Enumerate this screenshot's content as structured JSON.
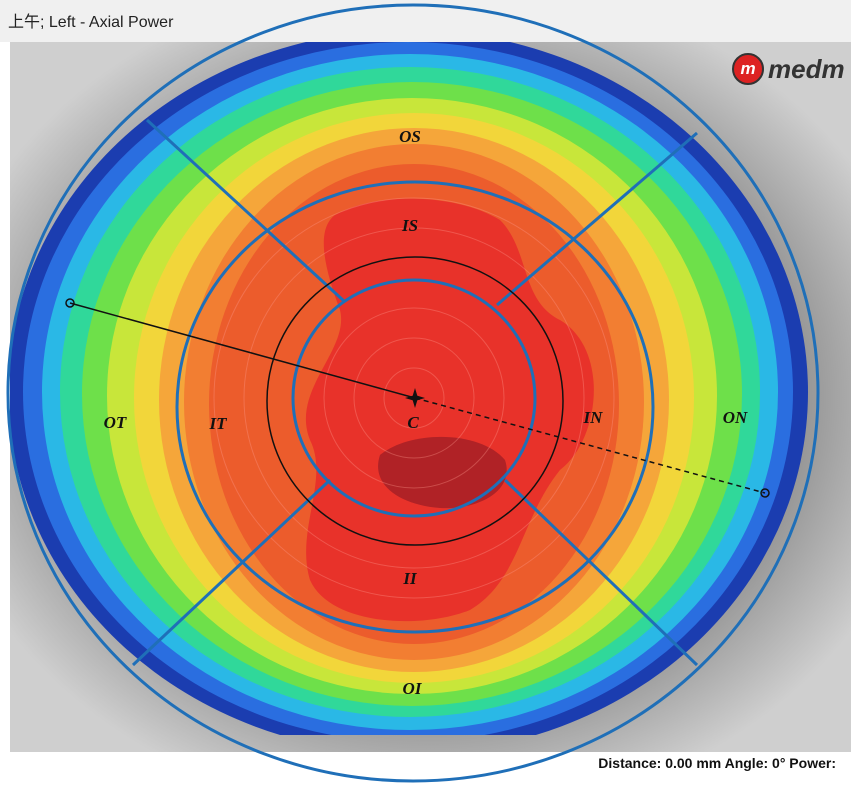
{
  "header": {
    "title": "上午; Left - Axial Power"
  },
  "logo": {
    "mark": "m",
    "text": "medm"
  },
  "zones": {
    "os": "OS",
    "is": "IS",
    "ot": "OT",
    "it": "IT",
    "c": "C",
    "in": "IN",
    "on": "ON",
    "ii": "II",
    "oi": "OI"
  },
  "status": "Distance: 0.00 mm Angle: 0° Power:"
}
